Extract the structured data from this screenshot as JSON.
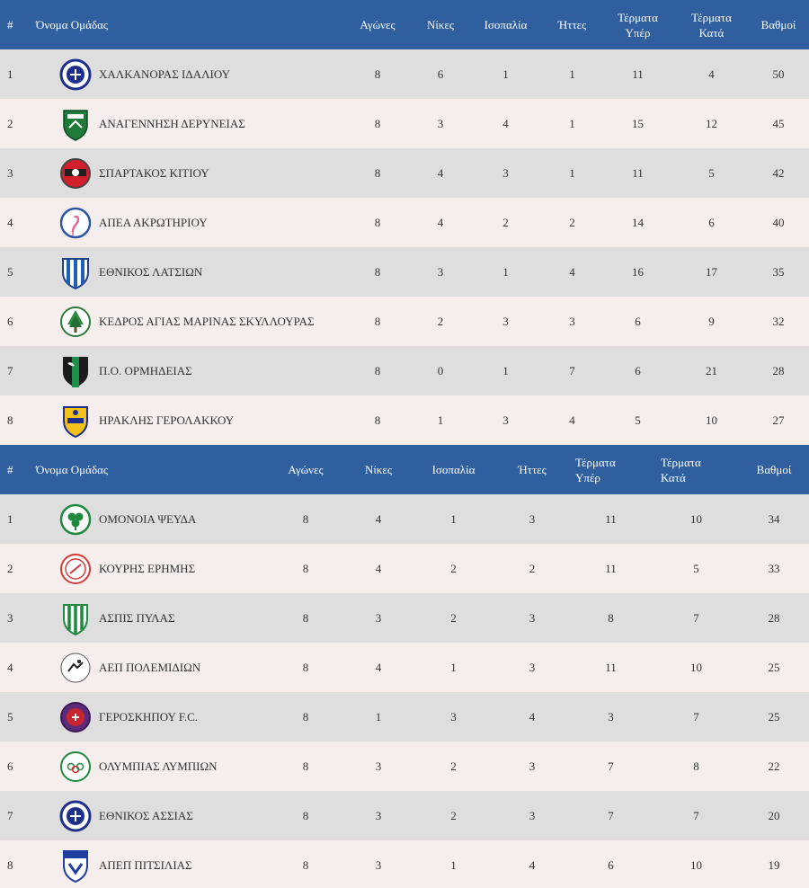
{
  "tables": [
    {
      "headers": {
        "pos": "#",
        "team": "Όνομα Ομάδας",
        "played": "Αγώνες",
        "wins": "Νίκες",
        "draws": "Ισοπαλία",
        "losses": "Ήττες",
        "gf": [
          "Τέρματα",
          "Υπέρ"
        ],
        "ga": [
          "Τέρματα",
          "Κατά"
        ],
        "points": "Βαθμοί"
      },
      "rows": [
        {
          "pos": "1",
          "team": "ΧΑΛΚΑΝΟΡΑΣ ΙΔΑΛΙΟΥ",
          "played": "8",
          "wins": "6",
          "draws": "1",
          "losses": "1",
          "gf": "11",
          "ga": "4",
          "points": "50",
          "logo": "blue-round-crest-icon"
        },
        {
          "pos": "2",
          "team": "ΑΝΑΓΕΝΝΗΣΗ ΔΕΡΥΝΕΙΑΣ",
          "played": "8",
          "wins": "3",
          "draws": "4",
          "losses": "1",
          "gf": "15",
          "ga": "12",
          "points": "45",
          "logo": "green-shield-crest-icon"
        },
        {
          "pos": "3",
          "team": "ΣΠΑΡΤΑΚΟΣ ΚΙΤΙΟΥ",
          "played": "8",
          "wins": "4",
          "draws": "3",
          "losses": "1",
          "gf": "11",
          "ga": "5",
          "points": "42",
          "logo": "red-round-crest-icon"
        },
        {
          "pos": "4",
          "team": "ΑΠΕΑ ΑΚΡΩΤΗΡΙΟΥ",
          "played": "8",
          "wins": "4",
          "draws": "2",
          "losses": "2",
          "gf": "14",
          "ga": "6",
          "points": "40",
          "logo": "flamingo-crest-icon"
        },
        {
          "pos": "5",
          "team": "ΕΘΝΙΚΟΣ ΛΑΤΣΙΩΝ",
          "played": "8",
          "wins": "3",
          "draws": "1",
          "losses": "4",
          "gf": "16",
          "ga": "17",
          "points": "35",
          "logo": "blue-striped-shield-icon"
        },
        {
          "pos": "6",
          "team": "ΚΕΔΡΟΣ ΑΓΙΑΣ ΜΑΡΙΝΑΣ ΣΚΥΛΛΟΥΡΑΣ",
          "played": "8",
          "wins": "2",
          "draws": "3",
          "losses": "3",
          "gf": "6",
          "ga": "9",
          "points": "32",
          "logo": "cedar-tree-crest-icon"
        },
        {
          "pos": "7",
          "team": "Π.Ο. ΟΡΜΗΔΕΙΑΣ",
          "played": "8",
          "wins": "0",
          "draws": "1",
          "losses": "7",
          "gf": "6",
          "ga": "21",
          "points": "28",
          "logo": "panther-shield-crest-icon"
        },
        {
          "pos": "8",
          "team": "ΗΡΑΚΛΗΣ ΓΕΡΟΛΑΚΚΟΥ",
          "played": "8",
          "wins": "1",
          "draws": "3",
          "losses": "4",
          "gf": "5",
          "ga": "10",
          "points": "27",
          "logo": "yellow-shield-crest-icon"
        }
      ]
    },
    {
      "headers": {
        "pos": "#",
        "team": "Όνομα Ομάδας",
        "played": "Αγώνες",
        "wins": "Νίκες",
        "draws": "Ισοπαλία",
        "losses": "Ήττες",
        "gf": [
          "Τέρματα",
          "Υπέρ"
        ],
        "ga": [
          "Τέρματα",
          "Κατά"
        ],
        "points": "Βαθμοί"
      },
      "rows": [
        {
          "pos": "1",
          "team": "ΟΜΟΝΟΙΑ ΨΕΥΔΑ",
          "played": "8",
          "wins": "4",
          "draws": "1",
          "losses": "3",
          "gf": "11",
          "ga": "10",
          "points": "34",
          "logo": "green-clover-crest-icon"
        },
        {
          "pos": "2",
          "team": "ΚΟΥΡΗΣ ΕΡΗΜΗΣ",
          "played": "8",
          "wins": "4",
          "draws": "2",
          "losses": "2",
          "gf": "11",
          "ga": "5",
          "points": "33",
          "logo": "red-outline-crest-icon"
        },
        {
          "pos": "3",
          "team": "ΑΣΠΙΣ ΠΥΛΑΣ",
          "played": "8",
          "wins": "3",
          "draws": "2",
          "losses": "3",
          "gf": "8",
          "ga": "7",
          "points": "28",
          "logo": "green-striped-shield-icon"
        },
        {
          "pos": "4",
          "team": "ΑΕΠ ΠΟΛΕΜΙΔΙΩΝ",
          "played": "8",
          "wins": "4",
          "draws": "1",
          "losses": "3",
          "gf": "11",
          "ga": "10",
          "points": "25",
          "logo": "black-round-crest-icon"
        },
        {
          "pos": "5",
          "team": "ΓΕΡΟΣΚΗΠΟΥ F.C.",
          "played": "8",
          "wins": "1",
          "draws": "3",
          "losses": "4",
          "gf": "3",
          "ga": "7",
          "points": "25",
          "logo": "purple-round-crest-icon"
        },
        {
          "pos": "6",
          "team": "ΟΛΥΜΠΙΑΣ ΛΥΜΠΙΩΝ",
          "played": "8",
          "wins": "3",
          "draws": "2",
          "losses": "3",
          "gf": "7",
          "ga": "8",
          "points": "22",
          "logo": "olympic-round-crest-icon"
        },
        {
          "pos": "7",
          "team": "ΕΘΝΙΚΟΣ ΑΣΣΙΑΣ",
          "played": "8",
          "wins": "3",
          "draws": "2",
          "losses": "3",
          "gf": "7",
          "ga": "7",
          "points": "20",
          "logo": "blue-round-crest-icon"
        },
        {
          "pos": "8",
          "team": "ΑΠΕΠ ΠΙΤΣΙΛΙΑΣ",
          "played": "8",
          "wins": "3",
          "draws": "1",
          "losses": "4",
          "gf": "6",
          "ga": "10",
          "points": "19",
          "logo": "blue-shield-crest-icon"
        }
      ]
    }
  ]
}
